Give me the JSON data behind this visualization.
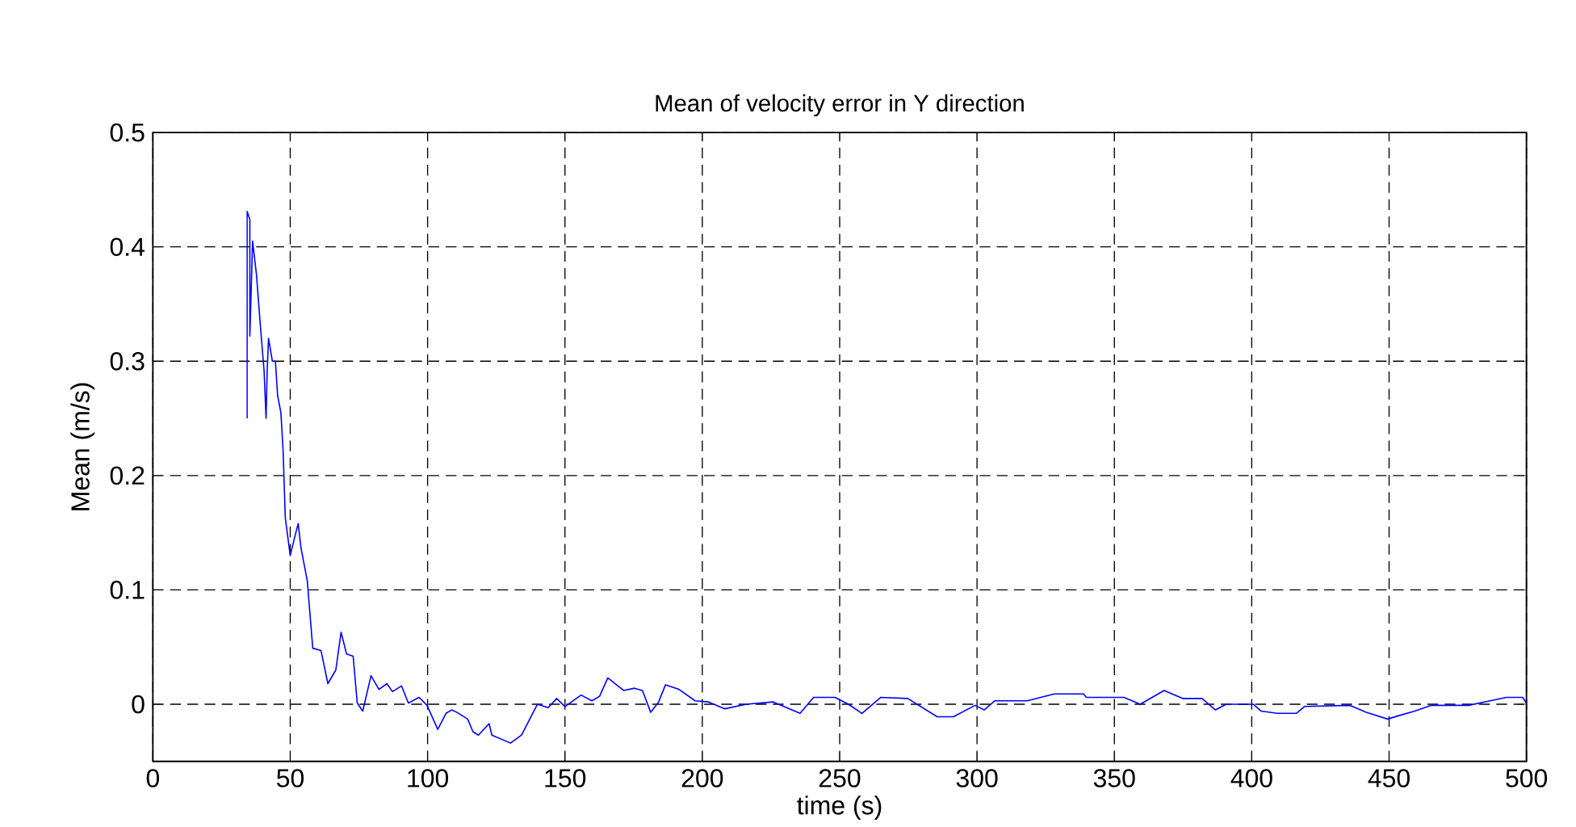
{
  "chart_data": {
    "type": "line",
    "title": "Mean of velocity error in Y direction",
    "xlabel": "time (s)",
    "ylabel": "Mean (m/s)",
    "x": [
      34.3,
      34.3,
      35.3,
      35.3,
      36.3,
      37.7,
      39.2,
      40.5,
      41.2,
      41.6,
      42.1,
      43.5,
      44.6,
      45.4,
      46.6,
      47.4,
      48.2,
      50,
      51.4,
      52.9,
      53.9,
      56.2,
      58.2,
      61.2,
      63.7,
      66.6,
      68.5,
      70.5,
      72.9,
      74.4,
      76.4,
      79.4,
      82.3,
      85.2,
      87.2,
      90.5,
      93,
      96.9,
      99.8,
      103.7,
      106.7,
      108.7,
      110.6,
      114.6,
      116.5,
      118.5,
      122.4,
      123.4,
      130.2,
      134.2,
      140,
      143.9,
      147,
      150,
      155.9,
      159.8,
      162.6,
      165.6,
      171.4,
      175.3,
      178.2,
      181.2,
      184.1,
      186.6,
      191.5,
      197.4,
      202.3,
      208.2,
      216,
      225.8,
      235.6,
      240.5,
      248.3,
      253.2,
      258.1,
      265,
      274.8,
      285.5,
      291.4,
      299.3,
      302.6,
      306.5,
      318.3,
      328.1,
      338.8,
      339.8,
      353.5,
      359.4,
      368.1,
      375,
      381.9,
      386.8,
      390.7,
      400.5,
      403.4,
      409.3,
      416.2,
      419.2,
      435.8,
      441.7,
      449.5,
      453.5,
      459.3,
      465.2,
      478.9,
      486.8,
      492.7,
      498.6,
      500
    ],
    "series": [
      {
        "color": "#0000ff",
        "values": [
          0.25,
          0.431,
          0.424,
          0.322,
          0.405,
          0.376,
          0.329,
          0.291,
          0.25,
          0.291,
          0.32,
          0.3,
          0.3,
          0.27,
          0.255,
          0.222,
          0.163,
          0.13,
          0.144,
          0.158,
          0.137,
          0.108,
          0.049,
          0.047,
          0.018,
          0.03,
          0.063,
          0.044,
          0.042,
          0.001,
          -0.006,
          0.025,
          0.013,
          0.018,
          0.011,
          0.016,
          0.001,
          0.006,
          -0.001,
          -0.022,
          -0.008,
          -0.005,
          -0.007,
          -0.013,
          -0.024,
          -0.027,
          -0.017,
          -0.027,
          -0.034,
          -0.027,
          0,
          -0.003,
          0.005,
          -0.002,
          0.008,
          0.003,
          0.007,
          0.023,
          0.012,
          0.014,
          0.012,
          -0.007,
          0.002,
          0.017,
          0.013,
          0.003,
          0.002,
          -0.004,
          0,
          0.002,
          -0.008,
          0.006,
          0.006,
          0,
          -0.008,
          0.006,
          0.005,
          -0.011,
          -0.011,
          -0.001,
          -0.005,
          0.003,
          0.003,
          0.009,
          0.009,
          0.006,
          0.006,
          0,
          0.012,
          0.005,
          0.005,
          -0.005,
          0,
          0,
          -0.006,
          -0.008,
          -0.008,
          -0.002,
          -0.001,
          -0.007,
          -0.013,
          -0.01,
          -0.006,
          -0.001,
          -0.001,
          0.003,
          0.006,
          0.006,
          0.001
        ]
      }
    ],
    "xlim": [
      0,
      500
    ],
    "ylim": [
      -0.05,
      0.5
    ],
    "xticks": [
      0,
      50,
      100,
      150,
      200,
      250,
      300,
      350,
      400,
      450,
      500
    ],
    "yticks": [
      0,
      0.1,
      0.2,
      0.3,
      0.4,
      0.5
    ],
    "grid": true,
    "line_style": "solid",
    "marker": "none"
  }
}
